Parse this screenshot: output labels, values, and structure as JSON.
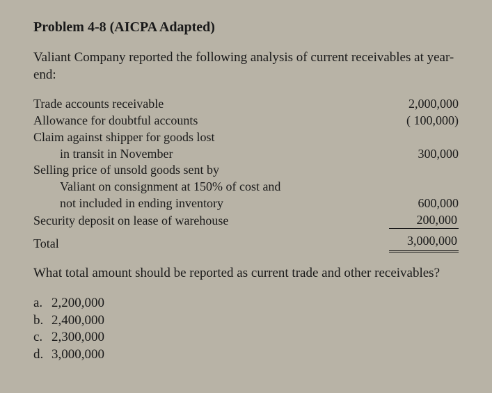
{
  "title": "Problem 4-8 (AICPA Adapted)",
  "intro": "Valiant Company reported the following analysis of current receivables at year-end:",
  "items": {
    "trade_ar": {
      "label": "Trade accounts receivable",
      "value": "2,000,000"
    },
    "allowance": {
      "label": "Allowance for doubtful accounts",
      "value": "(   100,000)"
    },
    "claim1": {
      "label": "Claim against shipper for goods lost"
    },
    "claim2": {
      "label": "in transit in November",
      "value": "300,000"
    },
    "selling1": {
      "label": "Selling price of unsold goods sent by"
    },
    "selling2": {
      "label": "Valiant on consignment at 150% of cost and"
    },
    "selling3": {
      "label": "not included in ending inventory",
      "value": "600,000"
    },
    "security": {
      "label": "Security deposit on lease of warehouse",
      "value": "200,000"
    },
    "total": {
      "label": "Total",
      "value": "3,000,000"
    }
  },
  "question": "What total amount should be reported as current trade and other receivables?",
  "options": {
    "a": {
      "letter": "a.",
      "text": "2,200,000"
    },
    "b": {
      "letter": "b.",
      "text": "2,400,000"
    },
    "c": {
      "letter": "c.",
      "text": "2,300,000"
    },
    "d": {
      "letter": "d.",
      "text": "3,000,000"
    }
  },
  "style": {
    "background_color": "#b8b3a6",
    "text_color": "#1a1a1a",
    "font_family": "Georgia, Times New Roman, serif",
    "title_fontsize": 20,
    "body_fontsize": 19,
    "items_fontsize": 18
  }
}
